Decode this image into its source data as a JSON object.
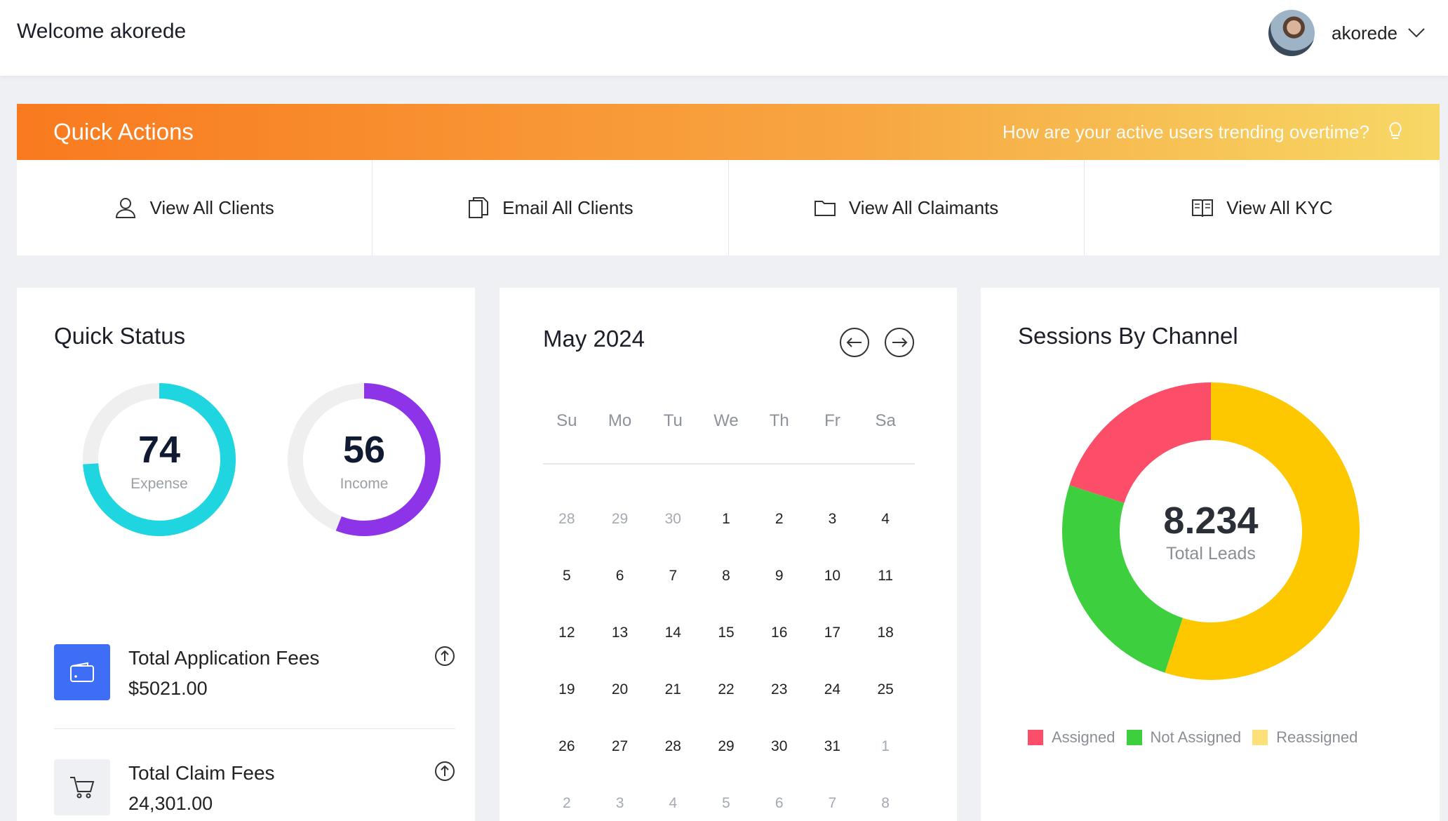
{
  "header": {
    "welcome": "Welcome akorede",
    "username": "akorede"
  },
  "quick_actions": {
    "title": "Quick Actions",
    "hint": "How are your active users trending overtime?",
    "items": [
      {
        "label": "View All Clients",
        "icon": "user-icon"
      },
      {
        "label": "Email All Clients",
        "icon": "documents-icon"
      },
      {
        "label": "View All Claimants",
        "icon": "folder-icon"
      },
      {
        "label": "View All KYC",
        "icon": "book-icon"
      }
    ]
  },
  "quick_status": {
    "title": "Quick Status",
    "expense": {
      "value": "74",
      "label": "Expense",
      "percent": 74,
      "color": "#1fd6e0"
    },
    "income": {
      "value": "56",
      "label": "Income",
      "percent": 56,
      "color": "#8e34e8"
    },
    "fees": [
      {
        "label": "Total Application Fees",
        "value": "$5021.00",
        "icon": "wallet-icon",
        "icon_bg": "#3d6ef5"
      },
      {
        "label": "Total Claim Fees",
        "value": "24,301.00",
        "icon": "cart-icon",
        "icon_bg": "#eff0f3"
      }
    ]
  },
  "calendar": {
    "title": "May 2024",
    "weekdays": [
      "Su",
      "Mo",
      "Tu",
      "We",
      "Th",
      "Fr",
      "Sa"
    ],
    "days": [
      {
        "d": "28",
        "m": true
      },
      {
        "d": "29",
        "m": true
      },
      {
        "d": "30",
        "m": true
      },
      {
        "d": "1"
      },
      {
        "d": "2"
      },
      {
        "d": "3"
      },
      {
        "d": "4"
      },
      {
        "d": "5"
      },
      {
        "d": "6"
      },
      {
        "d": "7"
      },
      {
        "d": "8"
      },
      {
        "d": "9"
      },
      {
        "d": "10"
      },
      {
        "d": "11"
      },
      {
        "d": "12"
      },
      {
        "d": "13"
      },
      {
        "d": "14"
      },
      {
        "d": "15"
      },
      {
        "d": "16"
      },
      {
        "d": "17"
      },
      {
        "d": "18"
      },
      {
        "d": "19"
      },
      {
        "d": "20"
      },
      {
        "d": "21"
      },
      {
        "d": "22"
      },
      {
        "d": "23"
      },
      {
        "d": "24"
      },
      {
        "d": "25"
      },
      {
        "d": "26"
      },
      {
        "d": "27"
      },
      {
        "d": "28"
      },
      {
        "d": "29"
      },
      {
        "d": "30"
      },
      {
        "d": "31"
      },
      {
        "d": "1",
        "m": true
      },
      {
        "d": "2",
        "m": true
      },
      {
        "d": "3",
        "m": true
      },
      {
        "d": "4",
        "m": true
      },
      {
        "d": "5",
        "m": true
      },
      {
        "d": "6",
        "m": true
      },
      {
        "d": "7",
        "m": true
      },
      {
        "d": "8",
        "m": true
      }
    ]
  },
  "sessions": {
    "title": "Sessions By Channel",
    "center_value": "8.234",
    "center_label": "Total Leads",
    "chart_data": {
      "type": "pie",
      "categories": [
        "Assigned",
        "Not Assigned",
        "Reassigned"
      ],
      "values": [
        20,
        25,
        55
      ],
      "colors": [
        "#fc4e68",
        "#3ecf3e",
        "#fdc800"
      ]
    },
    "legend_colors": [
      "#fc4e68",
      "#3ecf3e",
      "#fde07a"
    ]
  }
}
